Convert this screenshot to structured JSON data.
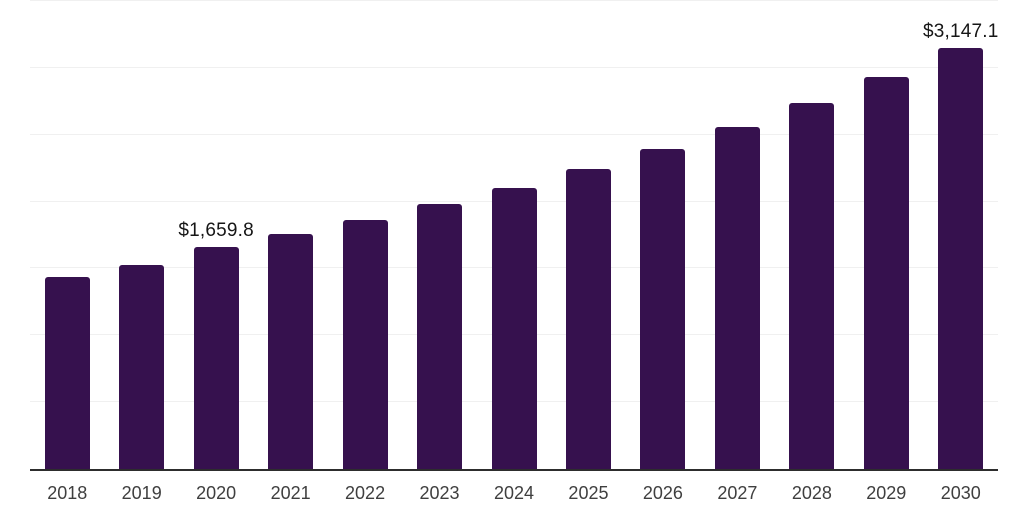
{
  "chart_data": {
    "type": "bar",
    "title": "",
    "xlabel": "",
    "ylabel": "",
    "categories": [
      "2018",
      "2019",
      "2020",
      "2021",
      "2022",
      "2023",
      "2024",
      "2025",
      "2026",
      "2027",
      "2028",
      "2029",
      "2030"
    ],
    "values": [
      1438,
      1523,
      1659.8,
      1757,
      1860,
      1980,
      2105,
      2240,
      2395,
      2560,
      2735,
      2930,
      3147.1
    ],
    "value_labels": [
      {
        "index": 2,
        "text": "$1,659.8"
      },
      {
        "index": 12,
        "text": "$3,147.1"
      }
    ],
    "ylim": [
      0,
      3500
    ],
    "ytick_step": 500,
    "grid": "horizontal",
    "legend": "none",
    "colors": {
      "bar": "#36114E",
      "gridline": "#f0f0f0",
      "axis_line": "#2d2d2d",
      "tick_label": "#3f3f3f",
      "data_label": "#161616",
      "background": "#ffffff"
    }
  }
}
